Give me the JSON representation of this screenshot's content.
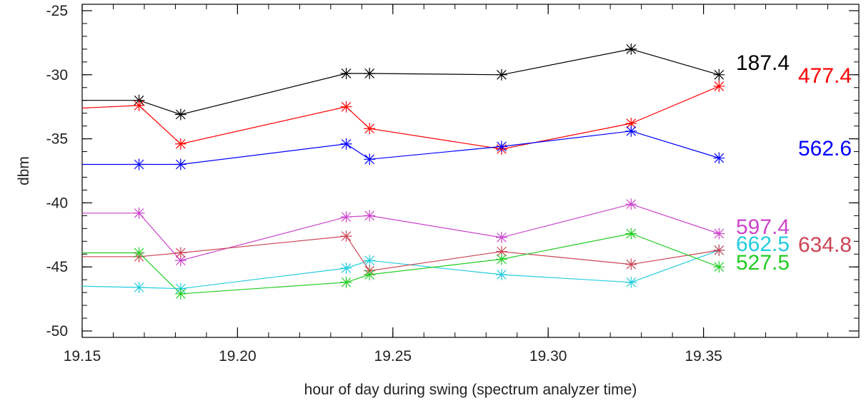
{
  "chart_data": {
    "type": "line",
    "xlabel": "hour of day during swing (spectrum analyzer time)",
    "ylabel": "dbm",
    "xlim": [
      19.15,
      19.4
    ],
    "ylim": [
      -50.5,
      -24.5
    ],
    "x_ticks": [
      "19.15",
      "19.20",
      "19.25",
      "19.30",
      "19.35"
    ],
    "y_ticks": [
      "-25",
      "-30",
      "-35",
      "-40",
      "-45",
      "-50"
    ],
    "x": [
      19.15,
      19.1683,
      19.1817,
      19.235,
      19.2425,
      19.285,
      19.3267,
      19.355
    ],
    "series": [
      {
        "name": "187.4",
        "color": "#000000",
        "values": [
          -32.0,
          -32.0,
          -33.1,
          -29.9,
          -29.9,
          -30.0,
          -28.0,
          -30.0
        ]
      },
      {
        "name": "477.4",
        "color": "#ff0000",
        "values": [
          -32.6,
          -32.4,
          -35.4,
          -32.5,
          -34.2,
          -35.8,
          -33.8,
          -30.9
        ]
      },
      {
        "name": "562.6",
        "color": "#0000ff",
        "values": [
          -37.0,
          -37.0,
          -37.0,
          -35.4,
          -36.6,
          -35.6,
          -34.4,
          -36.5
        ]
      },
      {
        "name": "597.4",
        "color": "#cc44cc",
        "values": [
          -40.8,
          -40.8,
          -44.5,
          -41.1,
          -41.0,
          -42.7,
          -40.1,
          -42.4
        ]
      },
      {
        "name": "662.5",
        "color": "#22ccdd",
        "values": [
          -46.5,
          -46.6,
          -46.7,
          -45.1,
          -44.5,
          -45.6,
          -46.2,
          -43.7
        ]
      },
      {
        "name": "634.8",
        "color": "#cc4455",
        "values": [
          -44.2,
          -44.2,
          -43.9,
          -42.6,
          -45.3,
          -43.8,
          -44.8,
          -43.7
        ]
      },
      {
        "name": "527.5",
        "color": "#22cc22",
        "values": [
          -43.9,
          -43.9,
          -47.1,
          -46.2,
          -45.6,
          -44.4,
          -42.4,
          -45.0
        ]
      }
    ]
  }
}
